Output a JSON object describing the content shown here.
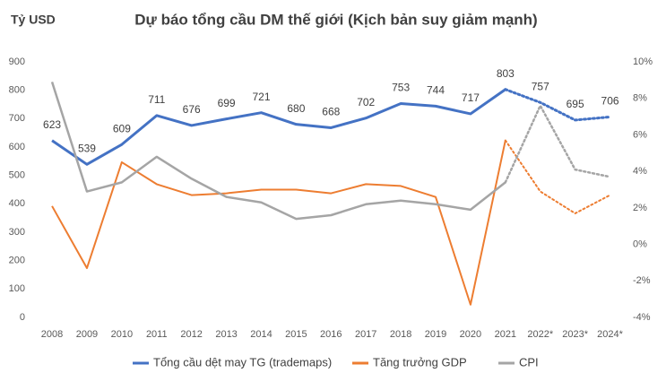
{
  "chart_data": {
    "type": "line",
    "title": "Dự báo tổng cầu DM thế giới (Kịch bản suy giảm mạnh)",
    "y_label": "Tỷ USD",
    "categories": [
      "2008",
      "2009",
      "2010",
      "2011",
      "2012",
      "2013",
      "2014",
      "2015",
      "2016",
      "2017",
      "2018",
      "2019",
      "2020",
      "2021",
      "2022*",
      "2023*",
      "2024*"
    ],
    "forecast_from": "2021",
    "series": [
      {
        "name": "Tổng cầu dệt may TG (trademaps)",
        "color": "#4472c4",
        "width": 3,
        "data_labels": true,
        "values": [
          623,
          539,
          609,
          711,
          676,
          699,
          721,
          680,
          668,
          702,
          753,
          744,
          717,
          803,
          757,
          695,
          706
        ]
      },
      {
        "name": "Tăng trưởng GDP",
        "color": "#ed7d31",
        "width": 2,
        "axis": "y2",
        "values": [
          2.1,
          -1.3,
          4.5,
          3.3,
          2.7,
          2.8,
          3.0,
          3.0,
          2.8,
          3.3,
          3.2,
          2.6,
          -3.3,
          5.7,
          2.9,
          1.7,
          2.7
        ]
      },
      {
        "name": "CPI",
        "color": "#a5a5a5",
        "width": 2.5,
        "axis": "y2",
        "values": [
          8.9,
          2.9,
          3.4,
          4.8,
          3.6,
          2.6,
          2.3,
          1.4,
          1.6,
          2.2,
          2.4,
          2.2,
          1.9,
          3.4,
          7.6,
          4.1,
          3.7
        ]
      }
    ],
    "ylim": [
      0,
      900
    ],
    "yticks": [
      0,
      100,
      200,
      300,
      400,
      500,
      600,
      700,
      800,
      900
    ],
    "y2lim": [
      -4,
      10
    ],
    "y2ticks": [
      {
        "value": -4,
        "label": "-4%"
      },
      {
        "value": -2,
        "label": "-2%"
      },
      {
        "value": 0,
        "label": "0%"
      },
      {
        "value": 2,
        "label": "2%"
      },
      {
        "value": 4,
        "label": "4%"
      },
      {
        "value": 6,
        "label": "6%"
      },
      {
        "value": 8,
        "label": "8%"
      },
      {
        "value": 10,
        "label": "10%"
      }
    ],
    "grid": false,
    "legend": "bottom"
  }
}
